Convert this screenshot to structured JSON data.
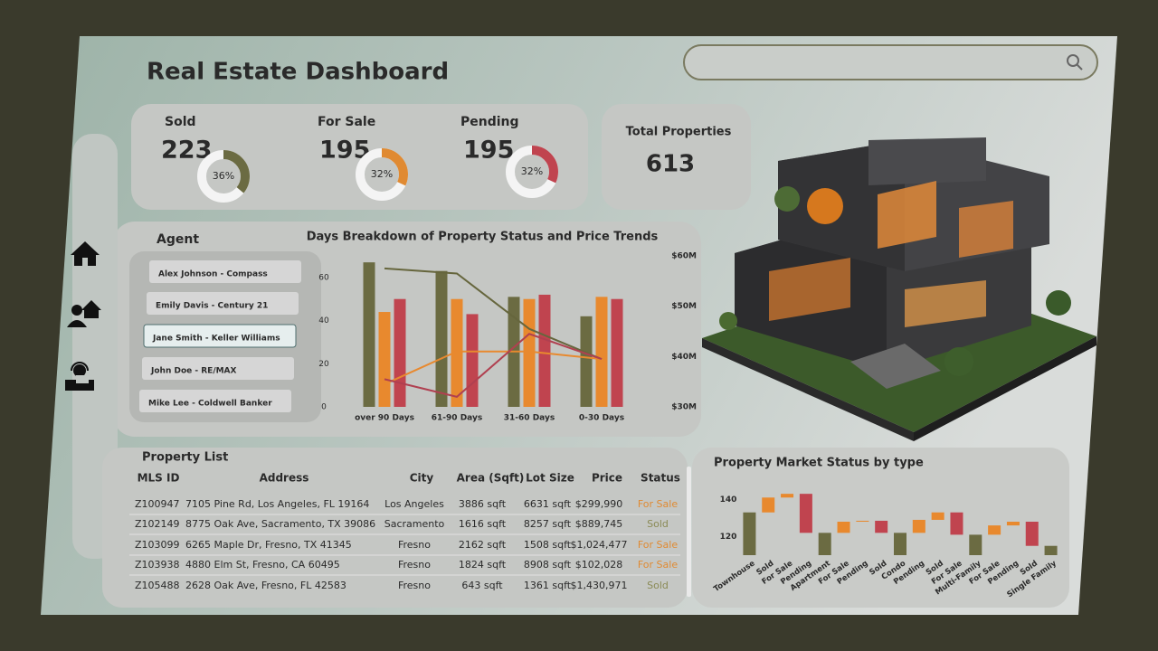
{
  "header": {
    "title": "Real Estate Dashboard"
  },
  "kpis": [
    {
      "label": "Sold",
      "count": 223,
      "share": {
        "value": 36,
        "label": "36%"
      },
      "color": "#6b6b42"
    },
    {
      "label": "For Sale",
      "count": 195,
      "share": {
        "value": 32,
        "label": "32%"
      },
      "color": "#e08a32"
    },
    {
      "label": "Pending",
      "count": 195,
      "share": {
        "value": 32,
        "label": "32%"
      },
      "color": "#c0444f"
    }
  ],
  "total": {
    "label": "Total Properties",
    "count": 613
  },
  "agents": {
    "title": "Agent",
    "items": [
      "Alex Johnson - Compass",
      "Emily Davis - Century 21",
      "Jane Smith - Keller Williams",
      "John Doe - RE/MAX",
      "Mike Lee - Coldwell Banker"
    ],
    "selected": 2
  },
  "table": {
    "title": "Property List",
    "columns": [
      "MLS ID",
      "Address",
      "City",
      "Area (Sqft)",
      "Lot Size",
      "Price",
      "Status"
    ],
    "rows": [
      [
        "Z100947",
        "7105 Pine Rd, Los Angeles, FL 19164",
        "Los Angeles",
        "3886 sqft",
        "6631 sqft",
        "$299,990",
        "For Sale"
      ],
      [
        "Z102149",
        "8775 Oak Ave, Sacramento, TX 39086",
        "Sacramento",
        "1616 sqft",
        "8257 sqft",
        "$889,745",
        "Sold"
      ],
      [
        "Z103099",
        "6265 Maple Dr, Fresno, TX 41345",
        "Fresno",
        "2162 sqft",
        "1508 sqft",
        "$1,024,477",
        "For Sale"
      ],
      [
        "Z103938",
        "4880 Elm St, Fresno, CA 60495",
        "Fresno",
        "1824 sqft",
        "8908 sqft",
        "$102,028",
        "For Sale"
      ],
      [
        "Z105488",
        "2628 Oak Ave, Fresno, FL 42583",
        "Fresno",
        "643 sqft",
        "1361 sqft",
        "$1,430,971",
        "Sold"
      ]
    ],
    "status_colors": [
      "#e08a32",
      "#8a8a55",
      "#e08a32",
      "#e08a32",
      "#8a8a55"
    ]
  },
  "chart_data": [
    {
      "type": "combo",
      "title": "Days Breakdown of Property Status and Price Trends",
      "categories": [
        "over 90 Days",
        "61-90 Days",
        "31-60 Days",
        "0-30 Days"
      ],
      "series": [
        {
          "type": "bar",
          "color": "#6b6b42",
          "values": [
            67,
            63,
            51,
            42
          ]
        },
        {
          "type": "bar",
          "color": "#e8892e",
          "values": [
            44,
            50,
            50,
            51
          ]
        },
        {
          "type": "bar",
          "color": "#c0444f",
          "values": [
            50,
            43,
            52,
            50
          ]
        },
        {
          "type": "line",
          "axis": "y2",
          "color": "#66663d",
          "values": [
            57500000,
            56500000,
            45500000,
            39500000
          ]
        },
        {
          "type": "line",
          "axis": "y2",
          "color": "#e8892e",
          "values": [
            34500000,
            41000000,
            41000000,
            39500000
          ]
        },
        {
          "type": "line",
          "axis": "y2",
          "color": "#b04050",
          "values": [
            35500000,
            32000000,
            44500000,
            39500000
          ]
        }
      ],
      "ylim": [
        0,
        70
      ],
      "yticks": [
        0,
        20,
        40,
        60
      ],
      "y2lim": [
        30000000,
        60000000
      ],
      "y2ticks": [
        {
          "value": 30000000,
          "label": "$30M"
        },
        {
          "value": 40000000,
          "label": "$40M"
        },
        {
          "value": 50000000,
          "label": "$50M"
        },
        {
          "value": 60000000,
          "label": "$60M"
        }
      ]
    },
    {
      "type": "waterfall",
      "title": "Property Market Status by type",
      "categories": [
        "Townhouse",
        "Sold",
        "For Sale",
        "Pending",
        "Apartment",
        "For Sale",
        "Pending",
        "Sold",
        "Condo",
        "Pending",
        "Sold",
        "For Sale",
        "Multi-Family",
        "For Sale",
        "Pending",
        "Sold",
        "Single Family"
      ],
      "values": [
        133,
        8,
        2,
        -21,
        122,
        6,
        0.5,
        -6.5,
        122,
        7,
        4,
        -12,
        121,
        5,
        2,
        -13,
        115
      ],
      "colors": [
        "#6b6b42",
        "#e8892e",
        "#e8892e",
        "#c0444f",
        "#6b6b42",
        "#e8892e",
        "#e8892e",
        "#c0444f",
        "#6b6b42",
        "#e8892e",
        "#e8892e",
        "#c0444f",
        "#6b6b42",
        "#e8892e",
        "#e8892e",
        "#c0444f",
        "#6b6b42"
      ],
      "total_color": "#6b6b42",
      "ylim": [
        110,
        146
      ],
      "yticks": [
        120,
        140
      ]
    }
  ]
}
